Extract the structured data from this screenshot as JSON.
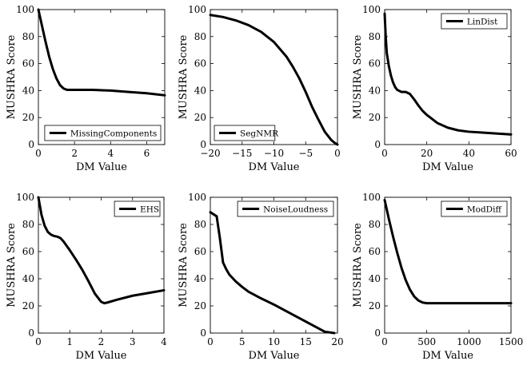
{
  "chart_data": [
    {
      "type": "line",
      "xlabel": "DM Value",
      "ylabel": "MUSHRA Score",
      "xlim": [
        0,
        7
      ],
      "ylim": [
        0,
        100
      ],
      "xticks": [
        0,
        2,
        4,
        6
      ],
      "yticks": [
        0,
        20,
        40,
        60,
        80,
        100
      ],
      "legend_position": "bottom-right",
      "series": [
        {
          "name": "MissingComponents",
          "x": [
            0,
            0.2,
            0.4,
            0.6,
            0.8,
            1.0,
            1.2,
            1.4,
            1.6,
            2.0,
            3.0,
            4.0,
            5.0,
            6.0,
            7.0
          ],
          "y": [
            100,
            88,
            76,
            65,
            56,
            49,
            44,
            41.5,
            40.5,
            40.5,
            40.5,
            40,
            39,
            38,
            36.5
          ]
        }
      ]
    },
    {
      "type": "line",
      "xlabel": "DM Value",
      "ylabel": "MUSHRA Score",
      "xlim": [
        -20,
        0
      ],
      "ylim": [
        0,
        100
      ],
      "xticks": [
        -20,
        -15,
        -10,
        -5,
        0
      ],
      "yticks": [
        0,
        20,
        40,
        60,
        80,
        100
      ],
      "legend_position": "bottom-left",
      "series": [
        {
          "name": "SegNMR",
          "x": [
            -20,
            -18,
            -16,
            -14,
            -12,
            -10,
            -8,
            -7,
            -6,
            -5,
            -4,
            -3,
            -2,
            -1,
            -0.5,
            0
          ],
          "y": [
            96,
            94.5,
            92,
            88.5,
            83.5,
            76,
            65,
            57.5,
            49,
            39,
            28,
            18.5,
            9.5,
            3.5,
            1.5,
            0
          ]
        }
      ]
    },
    {
      "type": "line",
      "xlabel": "DM Value",
      "ylabel": "MUSHRA Score",
      "xlim": [
        0,
        60
      ],
      "ylim": [
        0,
        100
      ],
      "xticks": [
        0,
        20,
        40,
        60
      ],
      "yticks": [
        0,
        20,
        40,
        60,
        80,
        100
      ],
      "legend_position": "top-right",
      "series": [
        {
          "name": "LinDist",
          "x": [
            0,
            0.5,
            1,
            2,
            3,
            4,
            5,
            6,
            8,
            10,
            12,
            14,
            16,
            18,
            20,
            25,
            30,
            35,
            40,
            45,
            50,
            55,
            60
          ],
          "y": [
            97,
            80,
            68,
            58,
            51,
            46,
            42.5,
            40.5,
            39,
            39,
            37.5,
            33.5,
            29,
            25,
            22,
            16,
            12.5,
            10.5,
            9.5,
            9,
            8.5,
            8,
            7.5
          ]
        }
      ]
    },
    {
      "type": "line",
      "xlabel": "DM Value",
      "ylabel": "MUSHRA Score",
      "xlim": [
        0,
        4
      ],
      "ylim": [
        0,
        100
      ],
      "xticks": [
        0,
        1,
        2,
        3,
        4
      ],
      "yticks": [
        0,
        20,
        40,
        60,
        80,
        100
      ],
      "legend_position": "top-right",
      "series": [
        {
          "name": "EHS",
          "x": [
            0,
            0.1,
            0.2,
            0.3,
            0.4,
            0.5,
            0.6,
            0.7,
            0.8,
            1.0,
            1.2,
            1.4,
            1.6,
            1.8,
            2.0,
            2.1,
            2.2,
            2.5,
            3.0,
            3.5,
            4.0
          ],
          "y": [
            100,
            87,
            79,
            74.5,
            72.5,
            71.5,
            71,
            70,
            67.5,
            61,
            54,
            46.5,
            38,
            29,
            23,
            22,
            22.5,
            24.5,
            27.5,
            29.5,
            31.5
          ]
        }
      ]
    },
    {
      "type": "line",
      "xlabel": "DM Value",
      "ylabel": "MUSHRA Score",
      "xlim": [
        0,
        20
      ],
      "ylim": [
        0,
        100
      ],
      "xticks": [
        0,
        5,
        10,
        15,
        20
      ],
      "yticks": [
        0,
        20,
        40,
        60,
        80,
        100
      ],
      "legend_position": "top-right",
      "series": [
        {
          "name": "NoiseLoudness",
          "x": [
            0,
            1,
            1.5,
            2,
            2.5,
            3,
            4,
            5,
            6,
            7,
            8,
            10,
            12,
            14,
            16,
            18,
            19.5
          ],
          "y": [
            89,
            86,
            70,
            52,
            47,
            43,
            38,
            34,
            30.5,
            28,
            25.5,
            21,
            16,
            11,
            6,
            1,
            0
          ]
        }
      ]
    },
    {
      "type": "line",
      "xlabel": "DM Value",
      "ylabel": "MUSHRA Score",
      "xlim": [
        0,
        1500
      ],
      "ylim": [
        0,
        100
      ],
      "xticks": [
        0,
        500,
        1000,
        1500
      ],
      "yticks": [
        0,
        20,
        40,
        60,
        80,
        100
      ],
      "legend_position": "top-right",
      "series": [
        {
          "name": "ModDiff",
          "x": [
            0,
            50,
            100,
            150,
            200,
            250,
            300,
            350,
            400,
            450,
            500,
            600,
            800,
            1000,
            1200,
            1500
          ],
          "y": [
            98,
            84,
            71,
            59,
            48,
            39,
            32,
            27,
            24,
            22.5,
            22,
            22,
            22,
            22,
            22,
            22
          ]
        }
      ]
    }
  ]
}
